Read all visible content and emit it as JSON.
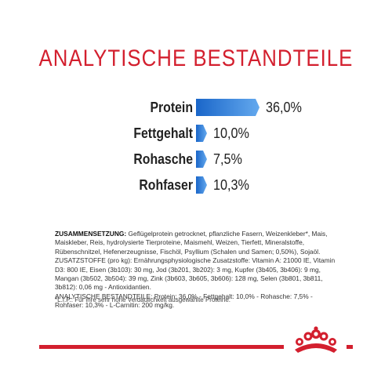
{
  "title": "ANALYTISCHE BESTANDTEILE",
  "colors": {
    "accent": "#d31f2e",
    "bar_start": "#1a66c9",
    "bar_end": "#64a9ee"
  },
  "chart_data": {
    "type": "bar",
    "orientation": "horizontal",
    "categories": [
      "Protein",
      "Fettgehalt",
      "Rohasche",
      "Rohfaser"
    ],
    "values": [
      36.0,
      10.0,
      7.5,
      10.3
    ],
    "value_labels": [
      "36,0%",
      "10,0%",
      "7,5%",
      "10,3%"
    ],
    "title": "ANALYTISCHE BESTANDTEILE",
    "xlabel": "",
    "ylabel": "",
    "xlim": [
      0,
      36.0
    ],
    "grid": false
  },
  "composition": {
    "zusammensetzung_label": "ZUSAMMENSETZUNG:",
    "zusammensetzung_text": " Geflügelprotein getrocknet, pflanzliche Fasern, Weizenkleber*, Mais, Maiskleber, Reis, hydrolysierte Tierproteine, Maismehl, Weizen, Tierfett, Mineralstoffe, Rübenschnitzel, Hefenerzeugnisse, Fischöl, Psyllium (Schalen und Samen; 0,50%), Sojaöl.",
    "zusatzstoffe_text": "ZUSATZSTOFFE (pro kg): Ernährungsphysiologische Zusatzstoffe: Vitamin A: 21000 IE, Vitamin D3: 800 IE, Eisen (3b103): 30 mg, Jod (3b201, 3b202): 3 mg, Kupfer (3b405, 3b406): 9 mg, Mangan (3b502, 3b504): 39 mg, Zink (3b603, 3b605, 3b606): 128 mg, Selen (3b801, 3b811, 3b812): 0,06 mg - Antioxidantien.",
    "analytische_text": "ANALYTISCHE BESTANDTEILE: Protein: 36,0% - Fettgehalt: 10,0% - Rohasche: 7,5% - Rohfaser: 10,3% - L-Carnitin: 200 mg/kg.",
    "footnote": "*L.I.P.: Für ihre sehr hohe Verdaulichkeit ausgewählte Proteine."
  },
  "logo_icon": "royal-canin-crown-icon"
}
